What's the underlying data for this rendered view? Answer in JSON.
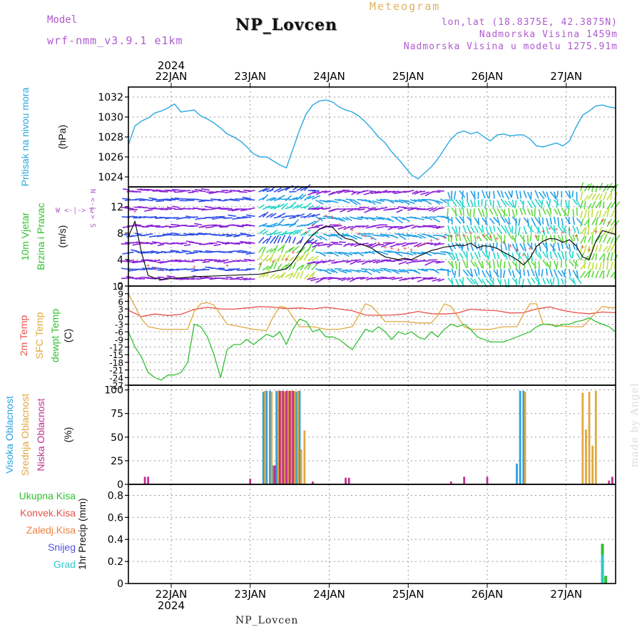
{
  "header": {
    "model_label": "Model",
    "model_name": "wrf-nmm_v3.9.1 e1km",
    "station_title": "NP_Lovcen",
    "meteogram_label": "Meteogram",
    "lonlat": "lon,lat (18.8375E, 42.3875N)",
    "altitude": "Nadmorska Visina 1459m",
    "model_altitude": "Nadmorska Visina u modelu 1275.91m"
  },
  "footer": {
    "station": "NP_Lovcen",
    "watermark": "made by Angel"
  },
  "colors": {
    "pressure": "#2aa8e0",
    "temp2m": "#e8504a",
    "sfc_temp": "#e0a840",
    "dewpoint": "#30c030",
    "wind_speed": "#111111",
    "high_cloud": "#2aa0e0",
    "mid_cloud": "#e0a840",
    "low_cloud": "#c0308f",
    "total_precip": "#30c030",
    "conv_precip": "#e8504a",
    "frz_precip": "#f08040",
    "snow": "#5050e0",
    "graupel": "#30c8c8",
    "wind_vector_palette": [
      "#8a20d8",
      "#3050e8",
      "#20a0e8",
      "#20d8c8",
      "#60d840",
      "#c0e040"
    ]
  },
  "chart_data": [
    {
      "type": "line",
      "name": "pressure",
      "ylabel_lines": [
        "Pritisak na nivou mora",
        "(hPa)"
      ],
      "ylabel_colors": [
        "#2aa8e0",
        "#111111"
      ],
      "ylim": [
        1023,
        1033
      ],
      "yticks": [
        1024,
        1026,
        1028,
        1030,
        1032
      ],
      "xlim": [
        0,
        148
      ],
      "x_tick_hours": [
        13,
        37,
        61,
        85,
        109,
        133
      ],
      "x_tick_labels": [
        "22JAN",
        "23JAN",
        "24JAN",
        "25JAN",
        "26JAN",
        "27JAN"
      ],
      "top_year_label": "2024",
      "grid": true,
      "series": [
        {
          "color": "#2aa8e0",
          "x": [
            0,
            2,
            4,
            6,
            8,
            10,
            12,
            14,
            16,
            18,
            20,
            22,
            24,
            26,
            28,
            30,
            32,
            34,
            36,
            38,
            40,
            42,
            44,
            46,
            48,
            50,
            52,
            54,
            56,
            58,
            60,
            62,
            64,
            66,
            68,
            70,
            72,
            74,
            76,
            78,
            80,
            82,
            84,
            86,
            88,
            90,
            92,
            94,
            96,
            98,
            100,
            102,
            104,
            106,
            108,
            110,
            112,
            114,
            116,
            118,
            120,
            122,
            124,
            126,
            128,
            130,
            132,
            134,
            136,
            138,
            140,
            142,
            144,
            146,
            148
          ],
          "y": [
            1027.2,
            1029.1,
            1029.6,
            1029.9,
            1030.4,
            1030.6,
            1030.9,
            1031.3,
            1030.5,
            1030.6,
            1030.7,
            1030.1,
            1029.8,
            1029.4,
            1028.9,
            1028.3,
            1028.0,
            1027.6,
            1027.0,
            1026.3,
            1026.0,
            1026.0,
            1025.6,
            1025.2,
            1024.9,
            1026.8,
            1028.7,
            1030.3,
            1031.2,
            1031.6,
            1031.7,
            1031.5,
            1031.0,
            1030.7,
            1030.5,
            1030.1,
            1029.5,
            1028.8,
            1028.0,
            1027.4,
            1026.5,
            1025.8,
            1025.0,
            1024.2,
            1023.8,
            1024.4,
            1025.0,
            1025.8,
            1026.8,
            1027.8,
            1028.4,
            1028.6,
            1028.3,
            1028.5,
            1028.0,
            1027.6,
            1028.2,
            1028.3,
            1028.1,
            1028.2,
            1028.2,
            1027.8,
            1027.1,
            1027.0,
            1027.2,
            1027.4,
            1027.1,
            1027.6,
            1029.0,
            1030.2,
            1030.6,
            1031.1,
            1031.2,
            1031.0,
            1030.9
          ]
        }
      ]
    },
    {
      "type": "line",
      "name": "wind",
      "ylabel_lines": [
        "10m Vjetar",
        "Brzina i Pravac",
        "(m/s)"
      ],
      "ylabel_colors": [
        "#30c030",
        "#30c030",
        "#111111"
      ],
      "compass_label": "W <-|-> E",
      "compass_vertical": "N <-|-> S",
      "ylim": [
        0,
        15
      ],
      "yticks": [
        0,
        4,
        8,
        12
      ],
      "xlim": [
        0,
        148
      ],
      "grid": true,
      "series": [
        {
          "name": "speed",
          "color": "#111111",
          "x": [
            0,
            2,
            4,
            6,
            8,
            10,
            20,
            30,
            40,
            44,
            48,
            50,
            52,
            54,
            56,
            58,
            60,
            62,
            64,
            66,
            68,
            70,
            72,
            74,
            76,
            78,
            80,
            82,
            84,
            86,
            88,
            90,
            92,
            94,
            96,
            98,
            100,
            102,
            104,
            106,
            108,
            110,
            112,
            114,
            116,
            118,
            120,
            122,
            124,
            126,
            128,
            130,
            132,
            134,
            136,
            138,
            140,
            142,
            144,
            146,
            148
          ],
          "y": [
            7.5,
            9.8,
            5.0,
            1.6,
            1.2,
            1.0,
            1.4,
            1.6,
            1.8,
            2.2,
            2.6,
            3.6,
            5.1,
            6.6,
            7.7,
            8.6,
            9.1,
            8.9,
            7.8,
            7.2,
            7.0,
            6.4,
            6.1,
            5.7,
            5.0,
            4.4,
            4.2,
            4.0,
            4.2,
            4.0,
            4.5,
            4.9,
            5.4,
            5.6,
            5.9,
            6.0,
            6.2,
            6.1,
            6.5,
            5.8,
            6.1,
            6.0,
            5.7,
            5.1,
            4.6,
            4.0,
            3.2,
            4.2,
            6.0,
            6.8,
            7.2,
            7.1,
            6.6,
            7.0,
            6.1,
            4.4,
            4.0,
            6.8,
            8.4,
            8.1,
            7.8
          ]
        }
      ]
    },
    {
      "type": "line",
      "name": "temperature",
      "ylabel_lines": [
        "2m Temp",
        "SFC Temp",
        "dewpt Temp",
        "(C)"
      ],
      "ylabel_colors": [
        "#e8504a",
        "#e0a840",
        "#30c030",
        "#111111"
      ],
      "ylim": [
        -27,
        12
      ],
      "yticks": [
        12,
        9,
        6,
        3,
        0,
        -3,
        -6,
        -9,
        -12,
        -15,
        -18,
        -21,
        -24,
        -27
      ],
      "xlim": [
        0,
        148
      ],
      "grid": true,
      "series": [
        {
          "name": "2m Temp",
          "color": "#e8504a",
          "x": [
            0,
            4,
            8,
            12,
            16,
            20,
            24,
            28,
            32,
            36,
            40,
            44,
            48,
            52,
            56,
            60,
            64,
            68,
            72,
            76,
            80,
            84,
            88,
            92,
            96,
            100,
            104,
            108,
            112,
            116,
            120,
            124,
            128,
            132,
            136,
            140,
            144,
            148
          ],
          "y": [
            2.5,
            0.0,
            1.0,
            0.4,
            0.9,
            2.8,
            3.7,
            3.0,
            2.9,
            3.4,
            3.9,
            3.7,
            3.1,
            3.4,
            3.0,
            3.7,
            3.0,
            2.3,
            0.6,
            0.5,
            0.6,
            1.0,
            2.0,
            1.1,
            1.0,
            1.4,
            2.9,
            2.5,
            2.3,
            1.4,
            1.5,
            3.0,
            3.8,
            2.4,
            1.5,
            1.1,
            1.8,
            1.5
          ]
        },
        {
          "name": "SFC Temp",
          "color": "#e0a840",
          "x": [
            0,
            4,
            6,
            10,
            14,
            18,
            20,
            22,
            24,
            26,
            30,
            34,
            38,
            42,
            44,
            46,
            48,
            52,
            56,
            60,
            64,
            68,
            70,
            72,
            74,
            78,
            82,
            84,
            88,
            92,
            94,
            96,
            98,
            100,
            102,
            104,
            106,
            110,
            114,
            118,
            120,
            122,
            124,
            126,
            130,
            134,
            138,
            142,
            144,
            146,
            148
          ],
          "y": [
            9.0,
            -1.0,
            -4.0,
            -5.0,
            -5.0,
            -5.0,
            2.0,
            5.0,
            5.5,
            4.5,
            -3.0,
            -4.0,
            -5.0,
            -5.5,
            0.0,
            4.0,
            3.5,
            -4.0,
            -4.0,
            -5.0,
            -5.0,
            -4.0,
            0.5,
            5.0,
            4.0,
            -2.0,
            -2.0,
            -2.0,
            -2.5,
            -2.5,
            0.5,
            5.0,
            4.0,
            0.0,
            -4.0,
            -5.0,
            -5.0,
            -5.0,
            -4.0,
            -4.0,
            1.0,
            5.0,
            5.0,
            -3.0,
            -3.5,
            -4.0,
            -4.0,
            1.5,
            4.0,
            3.5,
            3.5
          ]
        },
        {
          "name": "dewpt Temp",
          "color": "#30c030",
          "x": [
            0,
            2,
            4,
            6,
            8,
            10,
            12,
            14,
            16,
            18,
            20,
            22,
            24,
            26,
            28,
            30,
            32,
            34,
            36,
            38,
            40,
            42,
            44,
            46,
            48,
            50,
            52,
            54,
            56,
            58,
            60,
            62,
            64,
            66,
            68,
            70,
            72,
            74,
            76,
            78,
            80,
            82,
            84,
            86,
            88,
            90,
            92,
            94,
            96,
            98,
            100,
            102,
            104,
            106,
            108,
            110,
            112,
            114,
            116,
            118,
            120,
            122,
            124,
            126,
            128,
            130,
            132,
            134,
            136,
            138,
            140,
            142,
            144,
            146,
            148
          ],
          "y": [
            -6.0,
            -12.0,
            -16.0,
            -22.0,
            -24.0,
            -25.0,
            -23.0,
            -23.0,
            -22.0,
            -18.0,
            -3.0,
            -4.0,
            -8.0,
            -15.0,
            -24.0,
            -13.0,
            -11.0,
            -11.0,
            -9.0,
            -11.0,
            -9.0,
            -7.0,
            -8.0,
            -6.0,
            -11.0,
            -5.0,
            -1.0,
            -2.0,
            -6.0,
            -5.0,
            -8.0,
            -8.0,
            -9.0,
            -11.0,
            -13.0,
            -9.0,
            -5.0,
            -6.0,
            -4.0,
            -6.0,
            -9.0,
            -6.0,
            -7.0,
            -6.0,
            -8.0,
            -9.0,
            -6.0,
            -8.0,
            -5.0,
            -3.0,
            -4.0,
            -3.0,
            -5.0,
            -8.0,
            -9.0,
            -10.0,
            -10.0,
            -10.0,
            -9.0,
            -8.0,
            -7.0,
            -6.0,
            -4.0,
            -3.0,
            -3.0,
            -4.0,
            -3.0,
            -3.0,
            -2.0,
            -1.5,
            -0.5,
            -2.0,
            -3.0,
            -4.0,
            -6.0
          ]
        }
      ]
    },
    {
      "type": "bar",
      "name": "clouds",
      "ylabel_lines": [
        "Visoka Oblacnost",
        "Srednja Oblacnost",
        "Niska Oblacnost",
        "(%)"
      ],
      "ylabel_colors": [
        "#2aa0e0",
        "#e0a840",
        "#c0308f",
        "#111111"
      ],
      "ylim": [
        0,
        105
      ],
      "yticks": [
        0,
        25,
        50,
        75,
        100
      ],
      "xlim": [
        0,
        148
      ],
      "grid": true,
      "series": [
        {
          "name": "high",
          "color": "#2aa0e0",
          "x": [
            41,
            42,
            43,
            44,
            45,
            46,
            47,
            48,
            49,
            50,
            51,
            52,
            118,
            119,
            120
          ],
          "values": [
            98,
            99,
            99,
            20,
            99,
            99,
            99,
            99,
            99,
            99,
            98,
            99,
            22,
            99,
            99
          ]
        },
        {
          "name": "mid",
          "color": "#e0a840",
          "x": [
            41.5,
            43.5,
            45.5,
            46.5,
            47.5,
            48.5,
            49.5,
            50.5,
            51.5,
            52.5,
            53.5,
            120.5,
            138,
            139,
            140,
            141,
            142
          ],
          "values": [
            99,
            98,
            99,
            99,
            98,
            99,
            99,
            99,
            99,
            37,
            57,
            98,
            97,
            58,
            98,
            41,
            99
          ]
        },
        {
          "name": "low",
          "color": "#c0308f",
          "x": [
            5,
            6,
            37,
            44.5,
            46,
            47,
            48,
            49,
            50,
            56,
            66,
            67,
            98,
            102,
            109,
            146,
            147
          ],
          "values": [
            8,
            8,
            6,
            20,
            99,
            99,
            99,
            99,
            99,
            3,
            7,
            7,
            3,
            8,
            8,
            4,
            8
          ]
        }
      ]
    },
    {
      "type": "bar",
      "name": "precipitation",
      "ylabel_lines": [
        "1hr Precip (mm)"
      ],
      "ylabel_colors": [
        "#111111"
      ],
      "legend": [
        {
          "label": "Ukupna Kisa",
          "color": "#30c030"
        },
        {
          "label": "Konvek.Kisa",
          "color": "#e8504a"
        },
        {
          "label": "Zaledj.Kisa",
          "color": "#f08040"
        },
        {
          "label": "Snijeg",
          "color": "#5050e0"
        },
        {
          "label": "Grad",
          "color": "#30c8c8"
        }
      ],
      "ylim": [
        0,
        0.9
      ],
      "yticks": [
        0,
        0.2,
        0.4,
        0.6,
        0.8
      ],
      "xlim": [
        0,
        148
      ],
      "x_tick_hours": [
        13,
        37,
        61,
        85,
        109,
        133
      ],
      "x_tick_labels": [
        "22JAN",
        "23JAN",
        "24JAN",
        "25JAN",
        "26JAN",
        "27JAN"
      ],
      "bottom_year_label": "2024",
      "grid": true,
      "series": [
        {
          "name": "Ukupna Kisa",
          "color": "#30c030",
          "x": [
            144,
            145
          ],
          "values": [
            0.36,
            0.07
          ]
        },
        {
          "name": "Grad",
          "color": "#30c8c8",
          "x": [
            144
          ],
          "values": [
            0.26
          ]
        }
      ]
    }
  ]
}
